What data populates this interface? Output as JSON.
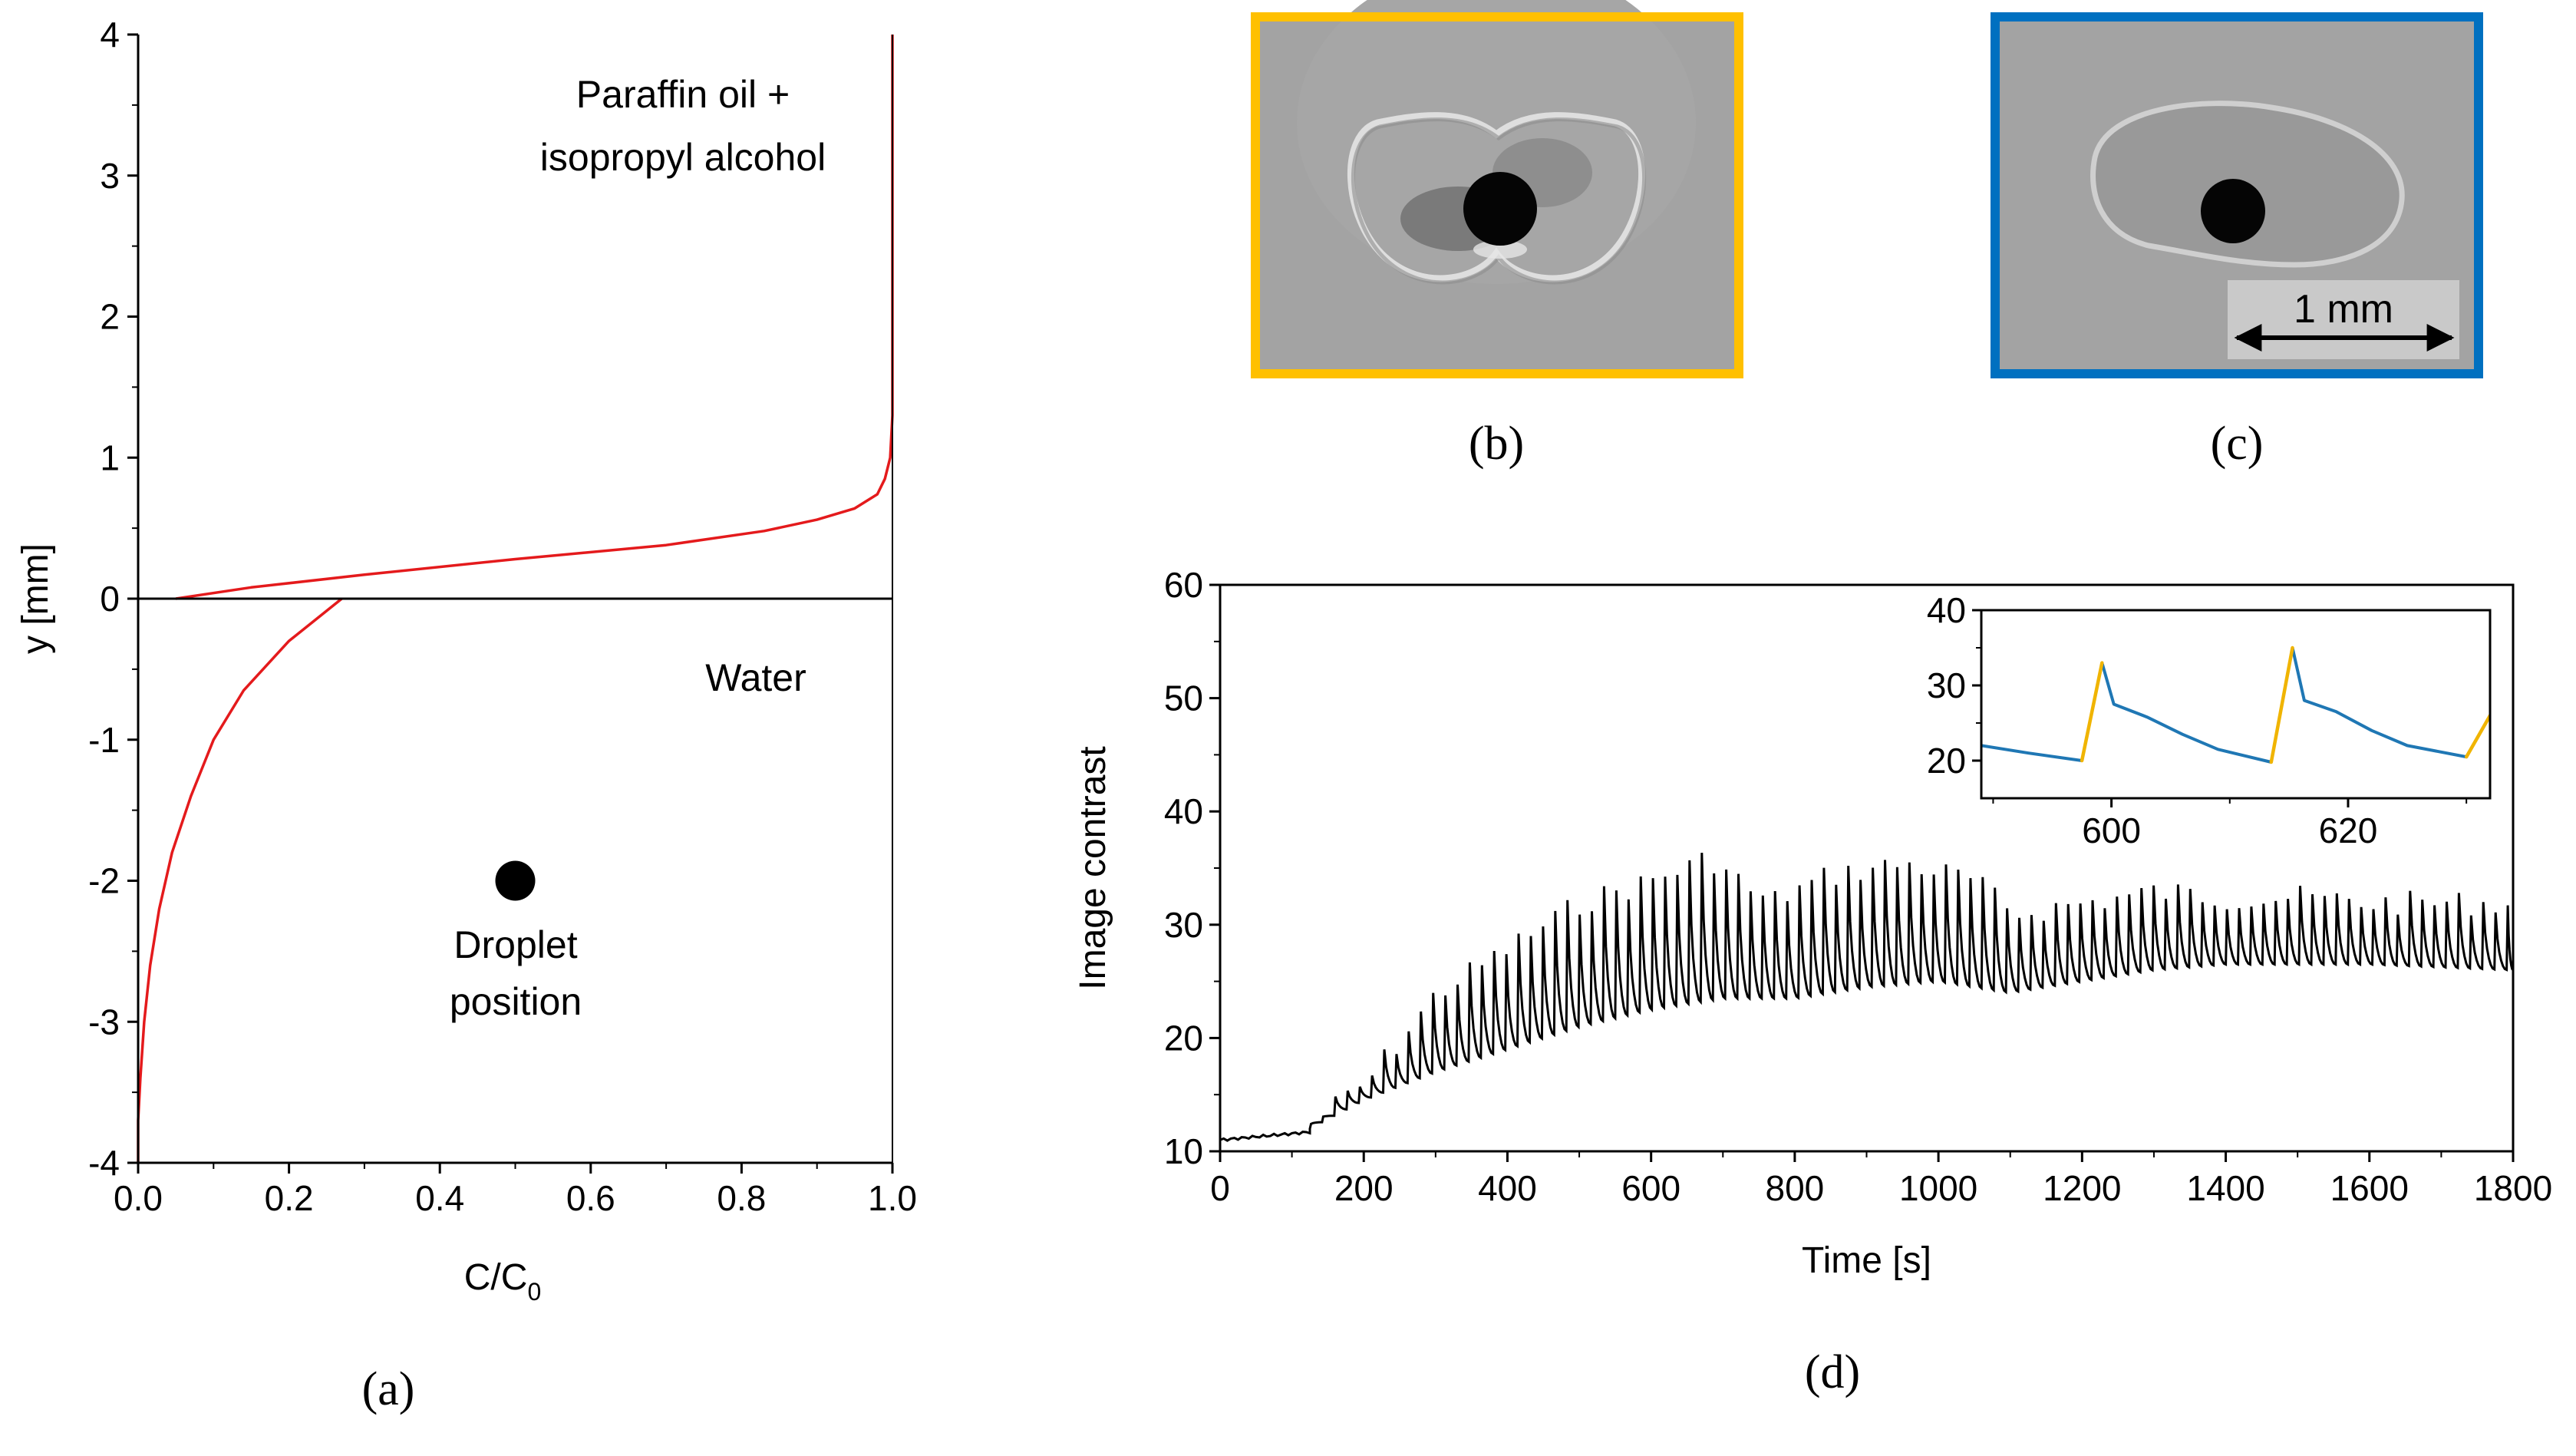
{
  "panel_labels": {
    "a": "(a)",
    "b": "(b)",
    "c": "(c)",
    "d": "(d)"
  },
  "micrograph_c": {
    "scalebar_label": "1 mm"
  },
  "colors": {
    "concentration_curve": "#e41a1c",
    "frame_b": "#ffc000",
    "frame_c": "#0070c0",
    "inset_rise": "#f0b400",
    "inset_decay": "#1f77b4",
    "axis": "#000000"
  },
  "chart_data": [
    {
      "id": "a",
      "type": "line",
      "xlabel": "C/C",
      "xlabel_subscript": "0",
      "ylabel": "y [mm]",
      "xlim": [
        0.0,
        1.0
      ],
      "ylim": [
        -4,
        4
      ],
      "xticks": [
        "0.0",
        "0.2",
        "0.4",
        "0.6",
        "0.8",
        "1.0"
      ],
      "yticks": [
        "-4",
        "-3",
        "-2",
        "-1",
        "0",
        "1",
        "2",
        "3",
        "4"
      ],
      "grid": false,
      "annotations": {
        "oil_line1": "Paraffin oil +",
        "oil_line2": "isopropyl alcohol",
        "water": "Water",
        "droplet_line1": "Droplet",
        "droplet_line2": "position"
      },
      "interface_y": 0,
      "droplet": {
        "x": 0.5,
        "y": -2
      },
      "series": [
        {
          "part": "upper",
          "x": [
            0.05,
            0.15,
            0.3,
            0.5,
            0.7,
            0.83,
            0.9,
            0.95,
            0.98,
            0.99,
            0.997,
            1.0,
            1.0
          ],
          "y": [
            0.0,
            0.08,
            0.17,
            0.28,
            0.38,
            0.48,
            0.56,
            0.64,
            0.74,
            0.85,
            1.0,
            1.3,
            4.0
          ]
        },
        {
          "part": "lower",
          "x": [
            0.27,
            0.2,
            0.14,
            0.1,
            0.07,
            0.045,
            0.028,
            0.016,
            0.008,
            0.003,
            0.0,
            0.0
          ],
          "y": [
            0.0,
            -0.3,
            -0.65,
            -1.0,
            -1.4,
            -1.8,
            -2.2,
            -2.6,
            -3.0,
            -3.4,
            -3.7,
            -4.0
          ]
        }
      ]
    },
    {
      "id": "d",
      "type": "line",
      "xlabel": "Time [s]",
      "ylabel": "Image contrast",
      "xlim": [
        0,
        1800
      ],
      "ylim": [
        10,
        60
      ],
      "xticks": [
        "0",
        "200",
        "400",
        "600",
        "800",
        "1000",
        "1200",
        "1400",
        "1600",
        "1800"
      ],
      "yticks": [
        "10",
        "20",
        "30",
        "40",
        "50",
        "60"
      ],
      "grid": false,
      "series_approx": {
        "baseline_start": 11,
        "oscillation_onset_s": 125,
        "period_s": 17,
        "trough_points": [
          [
            125,
            12
          ],
          [
            200,
            14.5
          ],
          [
            300,
            17
          ],
          [
            400,
            19
          ],
          [
            500,
            21
          ],
          [
            600,
            22.5
          ],
          [
            700,
            23.5
          ],
          [
            800,
            23.5
          ],
          [
            900,
            24.5
          ],
          [
            1000,
            25
          ],
          [
            1100,
            24
          ],
          [
            1200,
            25
          ],
          [
            1300,
            26
          ],
          [
            1400,
            26.5
          ],
          [
            1500,
            26.5
          ],
          [
            1600,
            26.5
          ],
          [
            1800,
            26
          ]
        ],
        "peak_points": [
          [
            125,
            13.5
          ],
          [
            200,
            17
          ],
          [
            300,
            25
          ],
          [
            400,
            29
          ],
          [
            500,
            33
          ],
          [
            600,
            35
          ],
          [
            680,
            37
          ],
          [
            760,
            33
          ],
          [
            850,
            35.5
          ],
          [
            950,
            36.5
          ],
          [
            1050,
            35
          ],
          [
            1100,
            32
          ],
          [
            1200,
            33
          ],
          [
            1300,
            34
          ],
          [
            1400,
            33.5
          ],
          [
            1500,
            33.5
          ],
          [
            1600,
            33
          ],
          [
            1800,
            33
          ]
        ]
      },
      "inset": {
        "type": "line",
        "xlim": [
          589,
          632
        ],
        "ylim": [
          15,
          40
        ],
        "xticks": [
          "600",
          "620"
        ],
        "yticks": [
          "20",
          "30",
          "40"
        ],
        "rise_segments": [
          {
            "x": [
              597.5,
              599.2
            ],
            "y": [
              20.0,
              33.0
            ]
          },
          {
            "x": [
              613.5,
              615.3
            ],
            "y": [
              19.8,
              35.0
            ]
          },
          {
            "x": [
              630.0,
              632.0
            ],
            "y": [
              20.5,
              26.0
            ]
          }
        ],
        "decay_segments": [
          {
            "x": [
              589,
              593,
              597.5
            ],
            "y": [
              22,
              21,
              20
            ]
          },
          {
            "x": [
              599.2,
              600.2,
              603,
              606,
              609,
              613.5
            ],
            "y": [
              33,
              27.5,
              25.8,
              23.5,
              21.5,
              19.8
            ]
          },
          {
            "x": [
              615.3,
              616.3,
              619,
              622,
              625,
              630.0
            ],
            "y": [
              35,
              28,
              26.5,
              24,
              22,
              20.5
            ]
          }
        ]
      }
    }
  ]
}
